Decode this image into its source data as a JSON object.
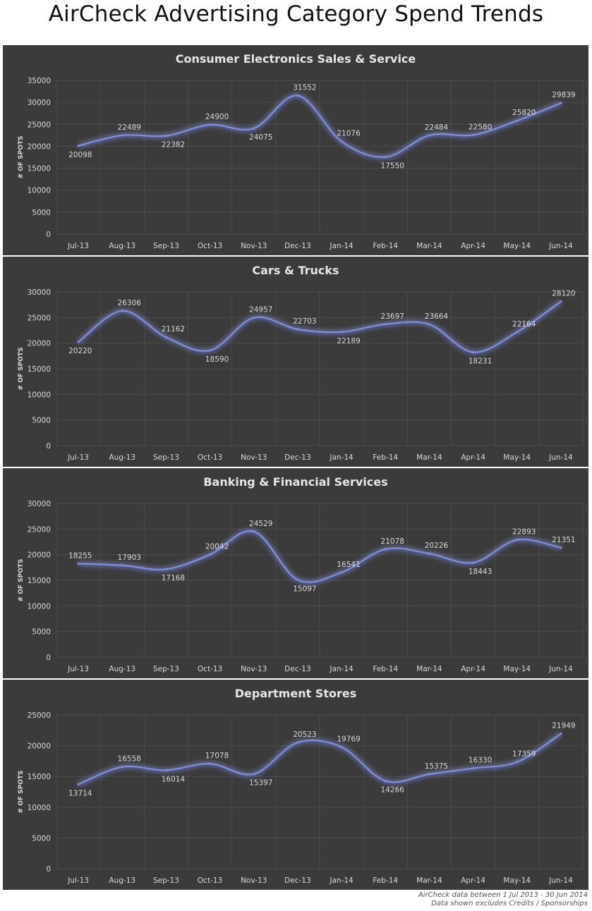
{
  "title": "AirCheck Advertising Category Spend Trends",
  "footnote": {
    "line1": "AirCheck data between 1 Jul 2013 - 30 Jun 2014",
    "line2": "Data shown excludes Credits / Sponsorships"
  },
  "colors": {
    "panel_bg": "#3b3b3b",
    "line": "#7f8fe0",
    "glow": "#8ea0ff",
    "grid": "#4c4c4c",
    "text": "#d9d9d9"
  },
  "chart_data": [
    {
      "type": "line",
      "title": "Consumer Electronics Sales & Service",
      "ylabel": "# OF SPOTS",
      "xlabel": "",
      "categories": [
        "Jul-13",
        "Aug-13",
        "Sep-13",
        "Oct-13",
        "Nov-13",
        "Dec-13",
        "Jan-14",
        "Feb-14",
        "Mar-14",
        "Apr-14",
        "May-14",
        "Jun-14"
      ],
      "values": [
        20098,
        22489,
        22382,
        24900,
        24075,
        31552,
        21076,
        17550,
        22484,
        22580,
        25820,
        29839
      ],
      "ylim": [
        0,
        35000
      ],
      "yticks": [
        0,
        5000,
        10000,
        15000,
        20000,
        25000,
        30000,
        35000
      ],
      "grid": true,
      "smooth": true
    },
    {
      "type": "line",
      "title": "Cars & Trucks",
      "ylabel": "# OF SPOTS",
      "xlabel": "",
      "categories": [
        "Jul-13",
        "Aug-13",
        "Sep-13",
        "Oct-13",
        "Nov-13",
        "Dec-13",
        "Jan-14",
        "Feb-14",
        "Mar-14",
        "Apr-14",
        "May-14",
        "Jun-14"
      ],
      "values": [
        20220,
        26306,
        21162,
        18590,
        24957,
        22703,
        22189,
        23697,
        23664,
        18231,
        22164,
        28120
      ],
      "ylim": [
        0,
        30000
      ],
      "yticks": [
        0,
        5000,
        10000,
        15000,
        20000,
        25000,
        30000
      ],
      "grid": true,
      "smooth": true
    },
    {
      "type": "line",
      "title": "Banking & Financial Services",
      "ylabel": "# OF SPOTS",
      "xlabel": "",
      "categories": [
        "Jul-13",
        "Aug-13",
        "Sep-13",
        "Oct-13",
        "Nov-13",
        "Dec-13",
        "Jan-14",
        "Feb-14",
        "Mar-14",
        "Apr-14",
        "May-14",
        "Jun-14"
      ],
      "values": [
        18255,
        17903,
        17168,
        20042,
        24529,
        15097,
        16541,
        21078,
        20226,
        18443,
        22893,
        21351
      ],
      "ylim": [
        0,
        30000
      ],
      "yticks": [
        0,
        5000,
        10000,
        15000,
        20000,
        25000,
        30000
      ],
      "grid": true,
      "smooth": true
    },
    {
      "type": "line",
      "title": "Department Stores",
      "ylabel": "# OF SPOTS",
      "xlabel": "",
      "categories": [
        "Jul-13",
        "Aug-13",
        "Sep-13",
        "Oct-13",
        "Nov-13",
        "Dec-13",
        "Jan-14",
        "Feb-14",
        "Mar-14",
        "Apr-14",
        "May-14",
        "Jun-14"
      ],
      "values": [
        13714,
        16558,
        16014,
        17078,
        15397,
        20523,
        19769,
        14266,
        15375,
        16330,
        17359,
        21949
      ],
      "ylim": [
        0,
        25000
      ],
      "yticks": [
        0,
        5000,
        10000,
        15000,
        20000,
        25000
      ],
      "grid": true,
      "smooth": true
    }
  ]
}
